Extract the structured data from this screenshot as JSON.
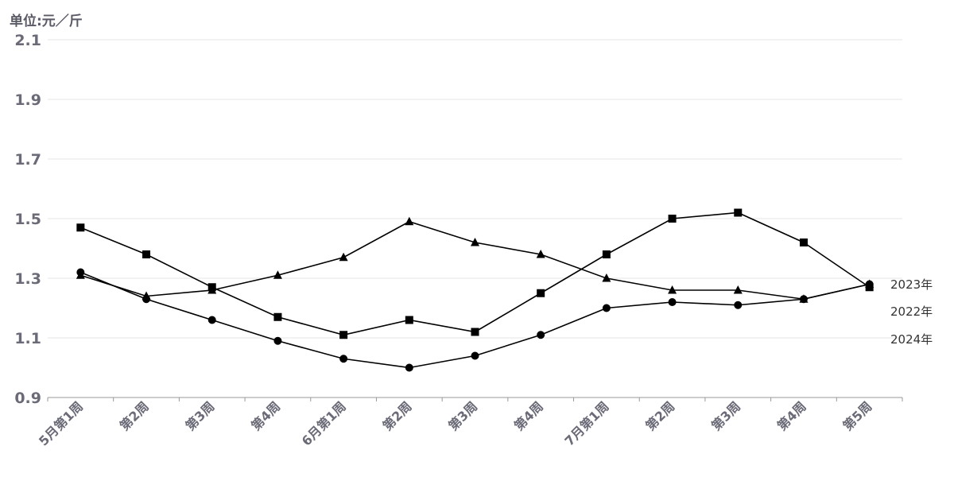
{
  "chart_data": {
    "type": "line",
    "unit_label": "单位:元／斤",
    "categories": [
      "5月第1周",
      "第2周",
      "第3周",
      "第4周",
      "6月第1周",
      "第2周",
      "第3周",
      "第4周",
      "7月第1周",
      "第2周",
      "第3周",
      "第4周",
      "第5周"
    ],
    "ylim": [
      0.9,
      2.1
    ],
    "yticks": [
      "0.9",
      "1.1",
      "1.3",
      "1.5",
      "1.7",
      "1.9",
      "2.1"
    ],
    "grid": true,
    "series": [
      {
        "name": "2023年",
        "marker": "square",
        "values": [
          1.47,
          1.38,
          1.27,
          1.17,
          1.11,
          1.16,
          1.12,
          1.25,
          1.38,
          1.5,
          1.52,
          1.42,
          1.27
        ]
      },
      {
        "name": "2022年",
        "marker": "triangle",
        "values": [
          1.31,
          1.24,
          1.26,
          1.31,
          1.37,
          1.49,
          1.42,
          1.38,
          1.3,
          1.26,
          1.26,
          1.23,
          1.28
        ]
      },
      {
        "name": "2024年",
        "marker": "circle",
        "values": [
          1.32,
          1.23,
          1.16,
          1.09,
          1.03,
          1.0,
          1.04,
          1.11,
          1.2,
          1.22,
          1.21,
          1.23,
          1.28
        ]
      }
    ]
  }
}
